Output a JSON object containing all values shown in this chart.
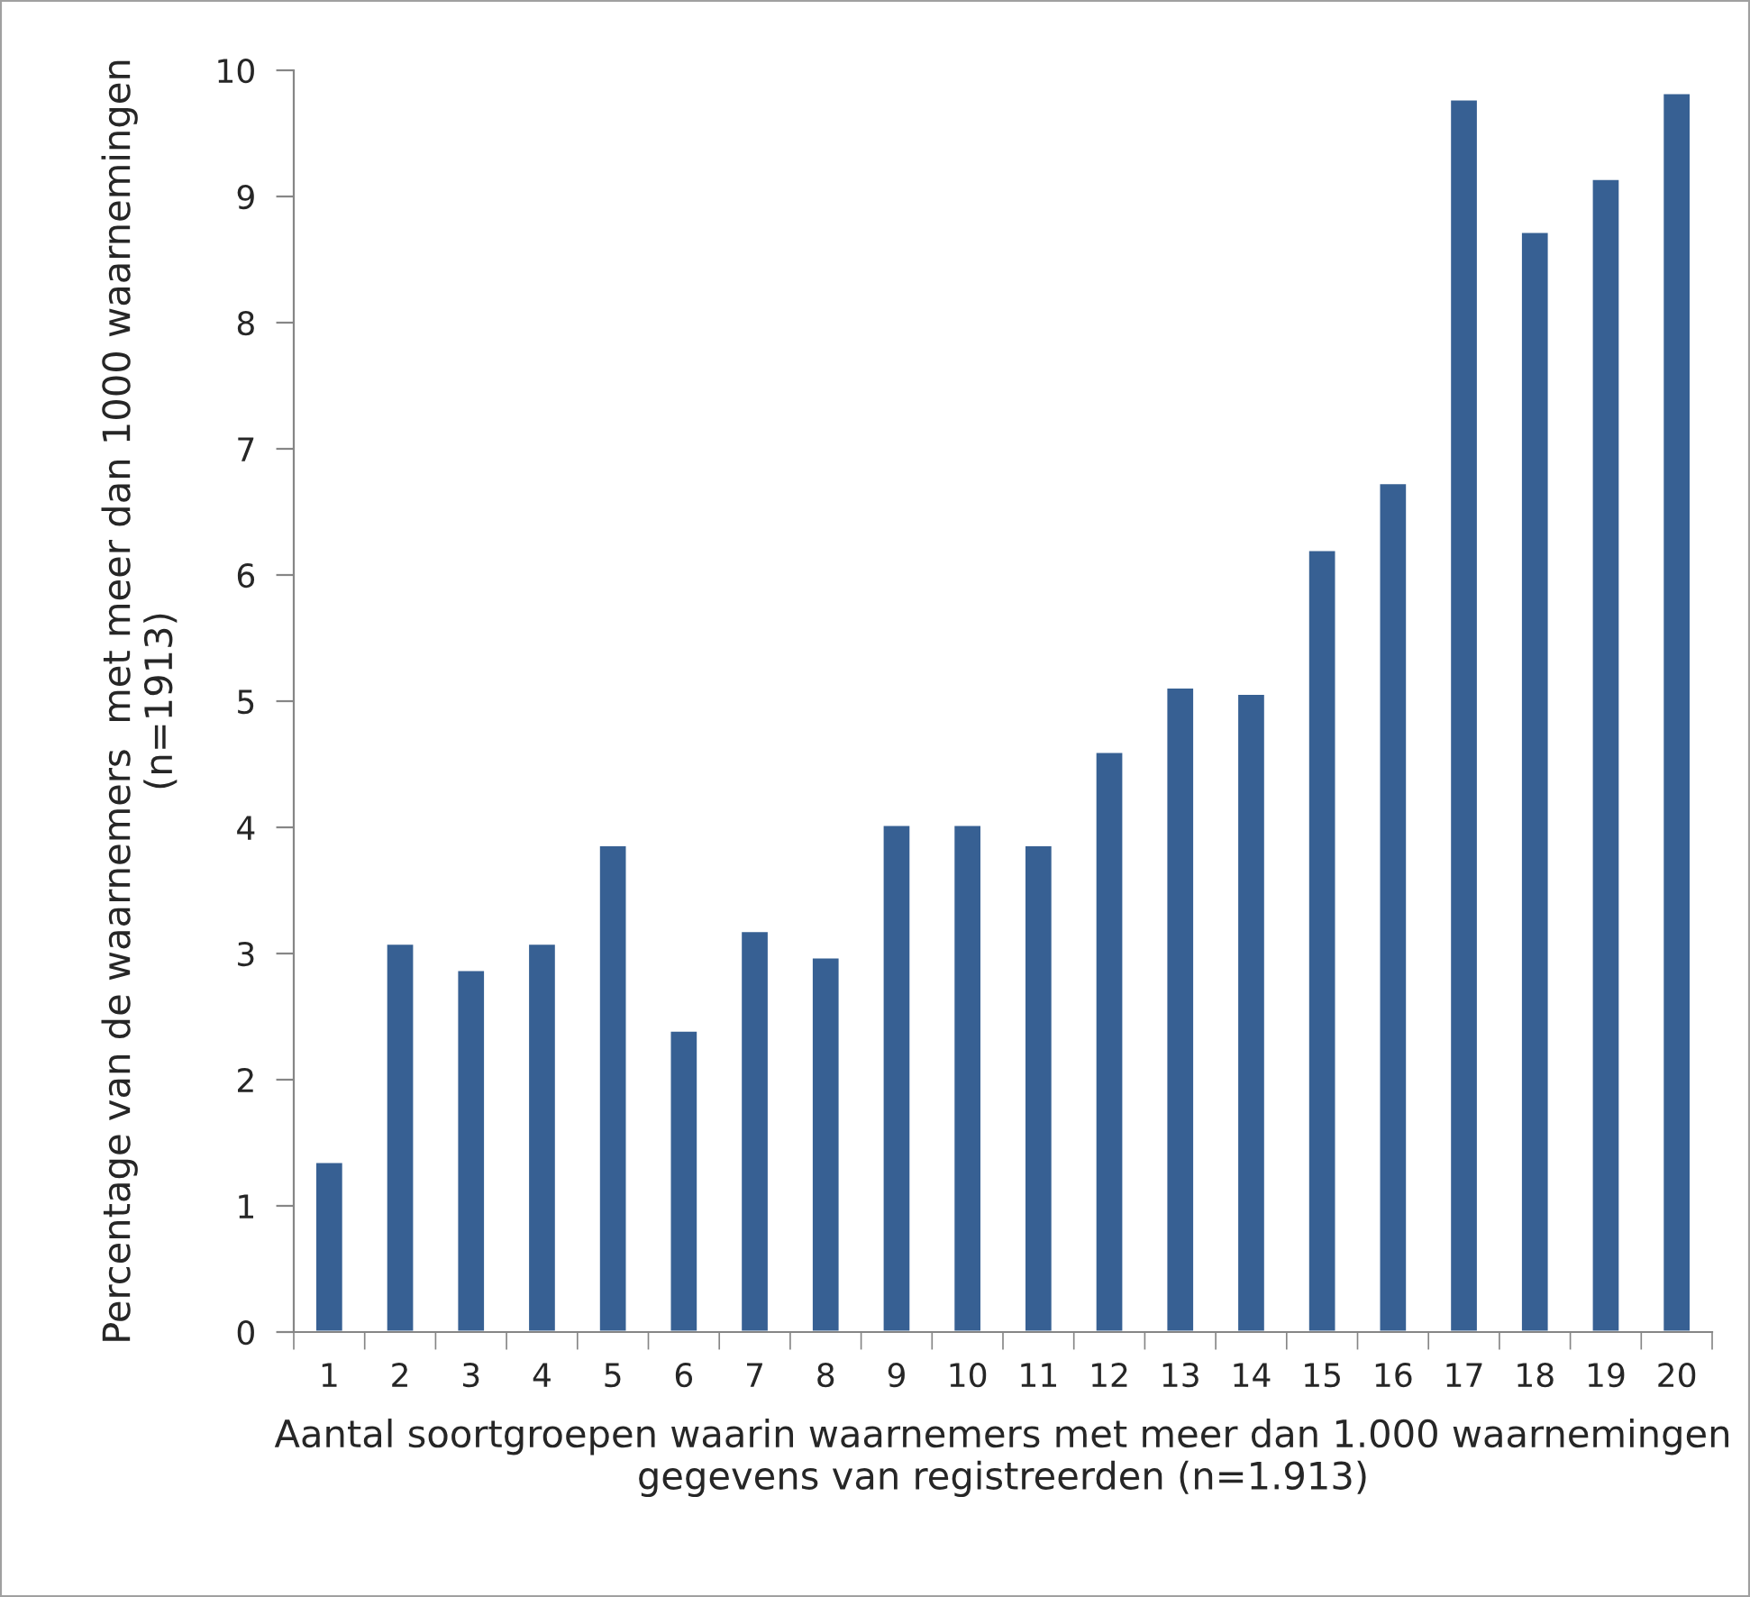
{
  "chart_data": {
    "type": "bar",
    "xlabel": "Aantal soortgroepen waarin waarnemers met meer dan 1.000 waarnemingen gegevens van registreerden (n=1.913)",
    "ylabel": "Percentage van de waarnemers  met meer dan 1000 waarnemingen (n=1913)",
    "categories": [
      "1",
      "2",
      "3",
      "4",
      "5",
      "6",
      "7",
      "8",
      "9",
      "10",
      "11",
      "12",
      "13",
      "14",
      "15",
      "16",
      "17",
      "18",
      "19",
      "20"
    ],
    "values": [
      1.35,
      3.08,
      2.87,
      3.08,
      3.86,
      2.39,
      3.18,
      2.97,
      4.02,
      4.02,
      3.86,
      4.6,
      5.11,
      5.06,
      6.2,
      6.73,
      9.77,
      8.72,
      9.14,
      9.82
    ],
    "color": "#376093",
    "ylim": [
      0,
      10
    ],
    "yticks": [
      0,
      1,
      2,
      3,
      4,
      5,
      6,
      7,
      8,
      9,
      10
    ],
    "grid": false
  }
}
